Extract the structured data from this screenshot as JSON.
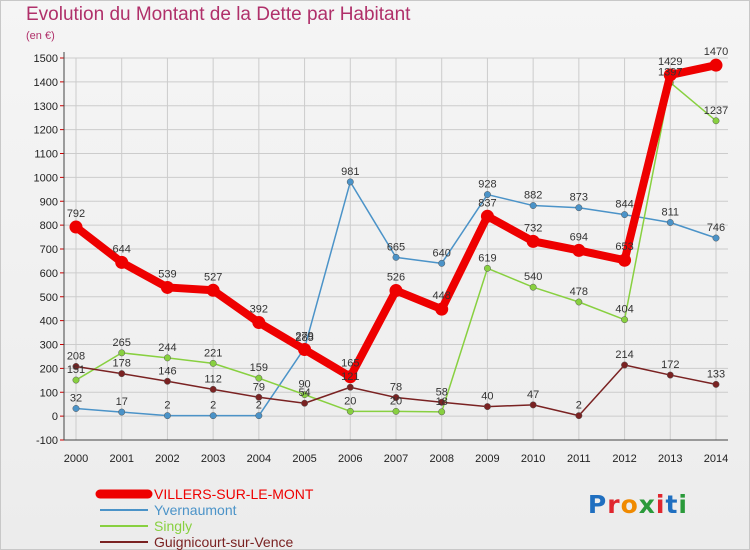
{
  "title": "Evolution du Montant de la Dette par Habitant",
  "unit": "(en €)",
  "logo": "Proxiti",
  "colors": {
    "title": "#b0306a",
    "villers": "#ee0000",
    "yvernaumont": "#4b93c8",
    "singly": "#88d040",
    "guignicourt": "#7a2222",
    "grid": "#cccccc"
  },
  "chart_data": {
    "type": "line",
    "title": "Evolution du Montant de la Dette par Habitant",
    "ylabel": "(en €)",
    "xlabel": "",
    "x": [
      "2000",
      "2001",
      "2002",
      "2003",
      "2004",
      "2005",
      "2006",
      "2007",
      "2008",
      "2009",
      "2010",
      "2011",
      "2012",
      "2013",
      "2014"
    ],
    "ylim": [
      -100,
      1500
    ],
    "yticks": [
      -100,
      0,
      100,
      200,
      300,
      400,
      500,
      600,
      700,
      800,
      900,
      1000,
      1100,
      1200,
      1300,
      1400,
      1500
    ],
    "grid": true,
    "legend_position": "bottom-left",
    "series": [
      {
        "name": "VILLERS-SUR-LE-MONT",
        "color": "#ee0000",
        "values": [
          792,
          644,
          539,
          527,
          392,
          279,
          165,
          526,
          448,
          837,
          732,
          694,
          653,
          1429,
          1470
        ],
        "labels": [
          "792",
          "644",
          "539",
          "527",
          "392",
          "279",
          "165",
          "526",
          "448",
          "837",
          "732",
          "694",
          "653",
          "1429",
          "1470"
        ]
      },
      {
        "name": "Yvernaumont",
        "color": "#4b93c8",
        "values": [
          32,
          17,
          2,
          2,
          2,
          285,
          981,
          665,
          640,
          928,
          882,
          873,
          844,
          811,
          746
        ],
        "labels": [
          "32",
          "17",
          "2",
          "2",
          "2",
          "285",
          "981",
          "665",
          "640",
          "928",
          "882",
          "873",
          "844",
          "811",
          "746"
        ]
      },
      {
        "name": "Singly",
        "color": "#88d040",
        "values": [
          151,
          265,
          244,
          221,
          159,
          90,
          20,
          20,
          18,
          619,
          540,
          478,
          404,
          1397,
          1237
        ],
        "labels": [
          "151",
          "265",
          "244",
          "221",
          "159",
          "90",
          "20",
          "20",
          "18",
          "619",
          "540",
          "478",
          "404",
          "1397",
          "1237"
        ]
      },
      {
        "name": "Guignicourt-sur-Vence",
        "color": "#7a2222",
        "values": [
          208,
          178,
          146,
          112,
          79,
          54,
          121,
          78,
          58,
          40,
          47,
          2,
          214,
          172,
          133
        ],
        "labels": [
          "208",
          "178",
          "146",
          "112",
          "79",
          "54",
          "121",
          "78",
          "58",
          "40",
          "47",
          "2",
          "214",
          "172",
          "133"
        ]
      }
    ]
  }
}
